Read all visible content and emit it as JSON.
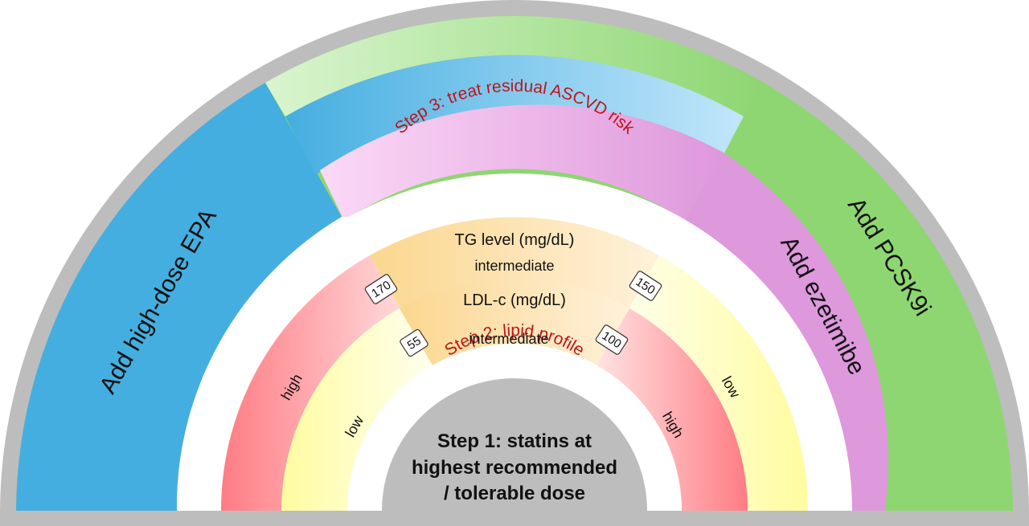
{
  "diagram": {
    "core_lines": [
      "Step 1: statins at",
      "highest recommended",
      "/ tolerable dose"
    ],
    "step2_title": "Step 2: lipid profile",
    "step3_title": "Step 3: treat residual ASCVD risk",
    "ldl": {
      "title": "LDL-c (mg/dL)",
      "left_label": "low",
      "middle_label": "intermediate",
      "right_label": "high",
      "threshold_left": "55",
      "threshold_right": "100"
    },
    "tg": {
      "title": "TG level (mg/dL)",
      "left_label": "high",
      "middle_label": "intermediate",
      "right_label": "low",
      "threshold_left": "170",
      "threshold_right": "150"
    },
    "therapies": {
      "epa": "Add high-dose EPA",
      "ezetimibe": "Add ezetimibe",
      "pcsk9i": "Add PCSK9i"
    },
    "colors": {
      "border": "#bdbdbd",
      "epa": "#45aee0",
      "pcsk9i": "#8ed672",
      "ezetimibe": "#de98dc",
      "high": "#ff7c84",
      "low": "#fffca0",
      "intermediate": "#fbd78f",
      "core": "#bdbdbd",
      "step_text": "#c0141c"
    }
  }
}
